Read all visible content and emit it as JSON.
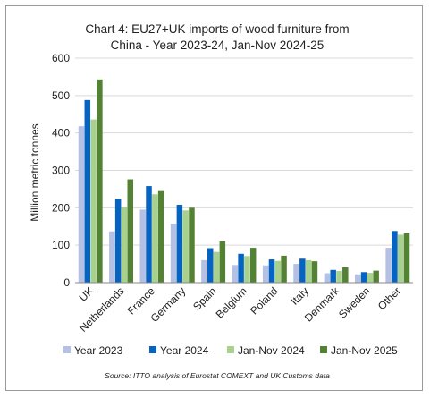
{
  "chart_data": {
    "type": "bar",
    "title_line1": "Chart 4: EU27+UK imports of wood furniture from",
    "title_line2": "China - Year 2023-24, Jan-Nov 2024-25",
    "ylabel": "Million metric tonnes",
    "xlabel": "",
    "ylim": [
      0,
      600
    ],
    "yticks": [
      0,
      100,
      200,
      300,
      400,
      500,
      600
    ],
    "grid": true,
    "legend_position": "bottom",
    "categories": [
      "UK",
      "Netherlands",
      "France",
      "Germany",
      "Spain",
      "Belgium",
      "Poland",
      "Italy",
      "Denmark",
      "Sweden",
      "Other"
    ],
    "series": [
      {
        "name": "Year 2023",
        "color": "#b4c1e4",
        "values": [
          418,
          137,
          195,
          157,
          60,
          47,
          46,
          50,
          25,
          22,
          93
        ]
      },
      {
        "name": "Year 2024",
        "color": "#0563c1",
        "values": [
          488,
          224,
          258,
          208,
          92,
          77,
          62,
          64,
          34,
          28,
          138
        ]
      },
      {
        "name": "Jan-Nov 2024",
        "color": "#a9d18e",
        "values": [
          436,
          201,
          236,
          193,
          82,
          71,
          58,
          60,
          31,
          26,
          128
        ]
      },
      {
        "name": "Jan-Nov 2025",
        "color": "#548235",
        "values": [
          543,
          276,
          247,
          200,
          110,
          93,
          72,
          57,
          41,
          32,
          132
        ]
      }
    ],
    "source": "Source: ITTO analysis of Eurostat COMEXT and UK Customs data"
  }
}
